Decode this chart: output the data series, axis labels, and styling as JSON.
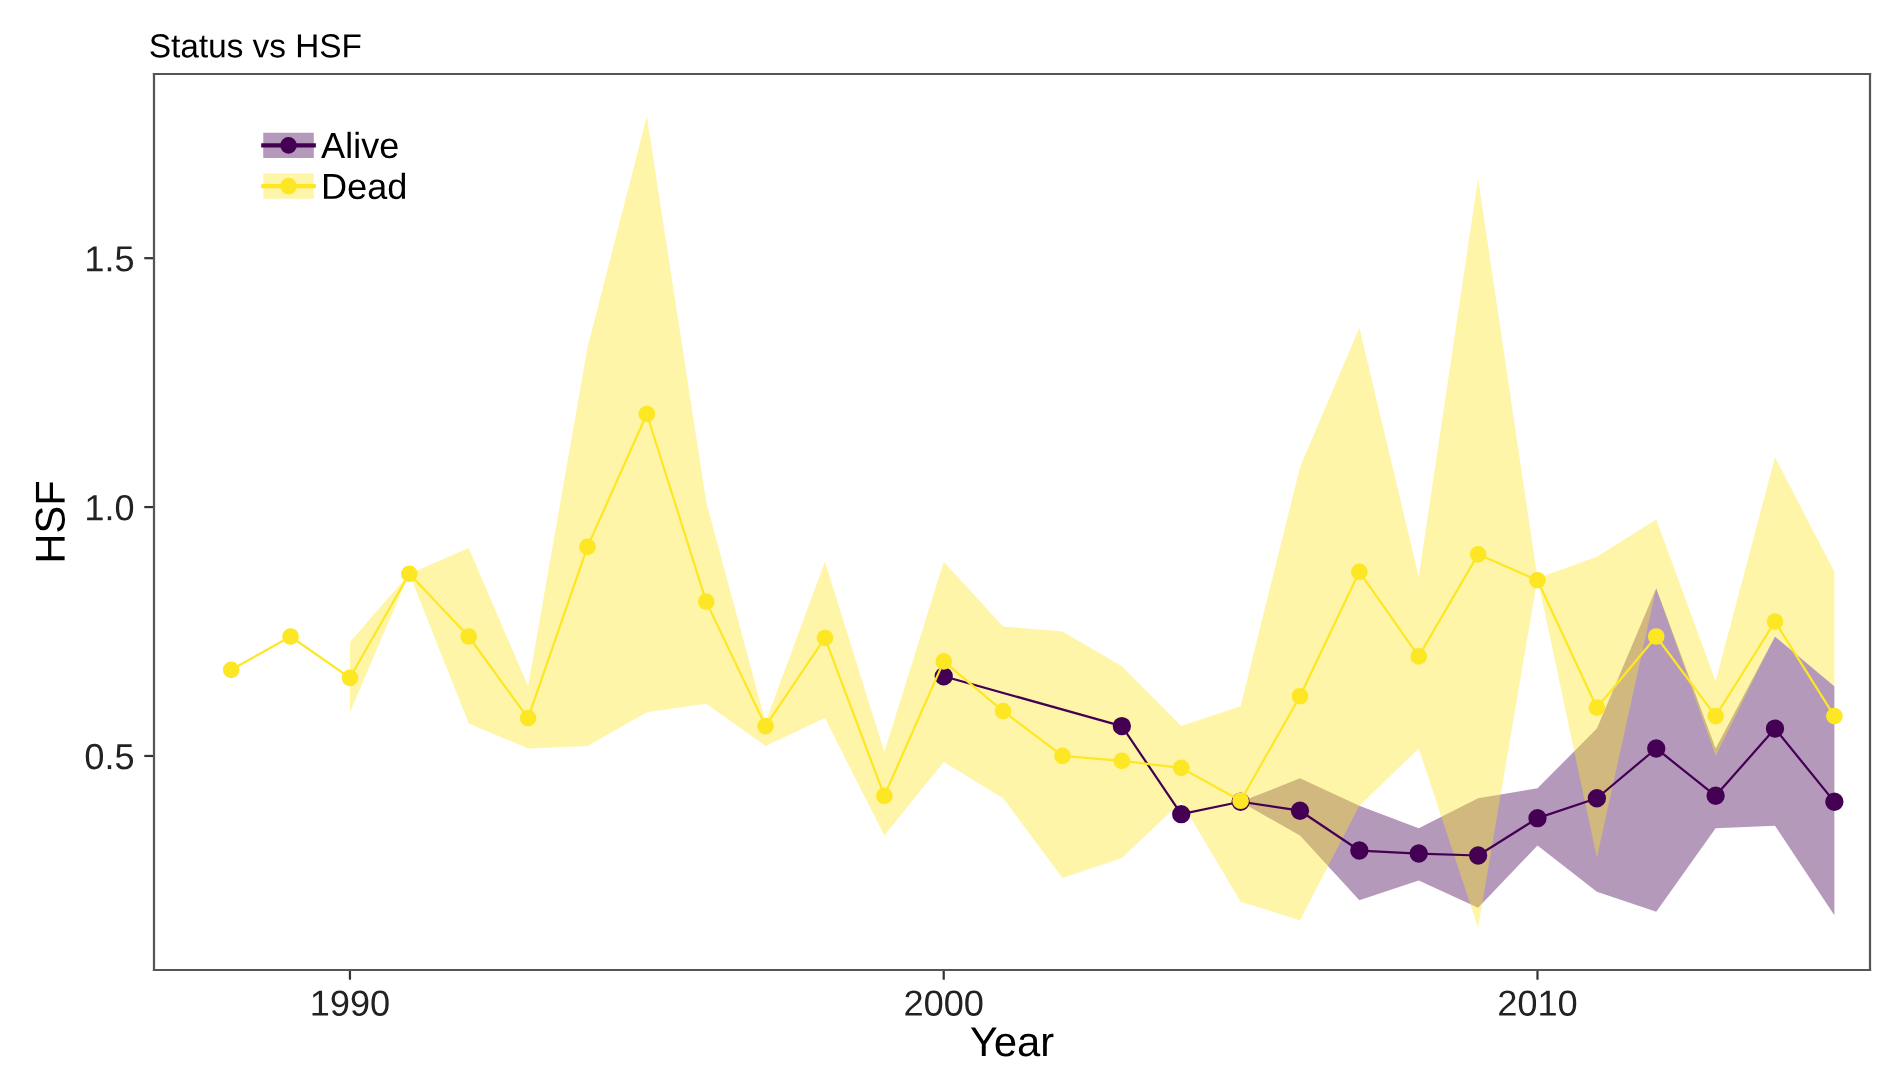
{
  "chart_data": {
    "type": "line",
    "title": "Status vs HSF",
    "xlabel": "Year",
    "ylabel": "HSF",
    "x": [
      1988,
      1989,
      1990,
      1991,
      1992,
      1993,
      1994,
      1995,
      1996,
      1997,
      1998,
      1999,
      2000,
      2001,
      2002,
      2003,
      2004,
      2005,
      2006,
      2007,
      2008,
      2009,
      2010,
      2011,
      2012,
      2013,
      2014,
      2015
    ],
    "series": [
      {
        "name": "Alive",
        "color": "#440154",
        "values": [
          null,
          null,
          null,
          null,
          null,
          null,
          null,
          null,
          null,
          null,
          null,
          null,
          0.66,
          null,
          null,
          0.56,
          0.383,
          0.408,
          0.39,
          0.31,
          0.304,
          0.3,
          0.375,
          0.415,
          0.515,
          0.42,
          0.555,
          0.408
        ],
        "lower": [
          null,
          null,
          null,
          null,
          null,
          null,
          null,
          null,
          null,
          null,
          null,
          null,
          null,
          null,
          null,
          null,
          null,
          0.408,
          0.34,
          0.21,
          0.25,
          0.195,
          0.32,
          0.227,
          0.187,
          0.355,
          0.36,
          0.18
        ],
        "upper": [
          null,
          null,
          null,
          null,
          null,
          null,
          null,
          null,
          null,
          null,
          null,
          null,
          null,
          null,
          null,
          null,
          null,
          0.408,
          0.455,
          0.4,
          0.355,
          0.415,
          0.435,
          0.555,
          0.837,
          0.515,
          0.74,
          0.64
        ]
      },
      {
        "name": "Dead",
        "color": "#fde725",
        "values": [
          0.673,
          0.74,
          0.657,
          0.866,
          0.74,
          0.576,
          0.92,
          1.187,
          0.81,
          0.56,
          0.737,
          0.42,
          0.69,
          0.59,
          0.5,
          0.49,
          0.476,
          0.41,
          0.62,
          0.87,
          0.7,
          0.905,
          0.853,
          0.597,
          0.74,
          0.58,
          0.77,
          0.58
        ],
        "lower": [
          null,
          null,
          0.588,
          0.866,
          0.565,
          0.515,
          0.52,
          0.588,
          0.605,
          0.52,
          0.576,
          0.34,
          0.488,
          0.415,
          0.255,
          0.295,
          0.408,
          0.207,
          0.17,
          0.4,
          0.515,
          0.155,
          0.857,
          0.295,
          0.837,
          0.5,
          0.74,
          0.64
        ],
        "upper": [
          null,
          null,
          0.729,
          0.866,
          0.918,
          0.64,
          1.32,
          1.785,
          1.01,
          0.568,
          0.89,
          0.508,
          0.89,
          0.76,
          0.75,
          0.68,
          0.56,
          0.6,
          1.08,
          1.36,
          0.86,
          1.66,
          0.857,
          0.9,
          0.975,
          0.65,
          1.1,
          0.87
        ]
      }
    ],
    "xlim": [
      1986.7,
      2015.6
    ],
    "ylim": [
      0.07,
      1.87
    ],
    "xticks": [
      1990,
      2000,
      2010
    ],
    "yticks": [
      {
        "value": 0.5,
        "label": "0.5"
      },
      {
        "value": 1.0,
        "label": "1.0"
      },
      {
        "value": 1.5,
        "label": "1.5"
      }
    ],
    "grid": false,
    "legend": "top left",
    "marker": "circle",
    "line_style": "solid"
  }
}
